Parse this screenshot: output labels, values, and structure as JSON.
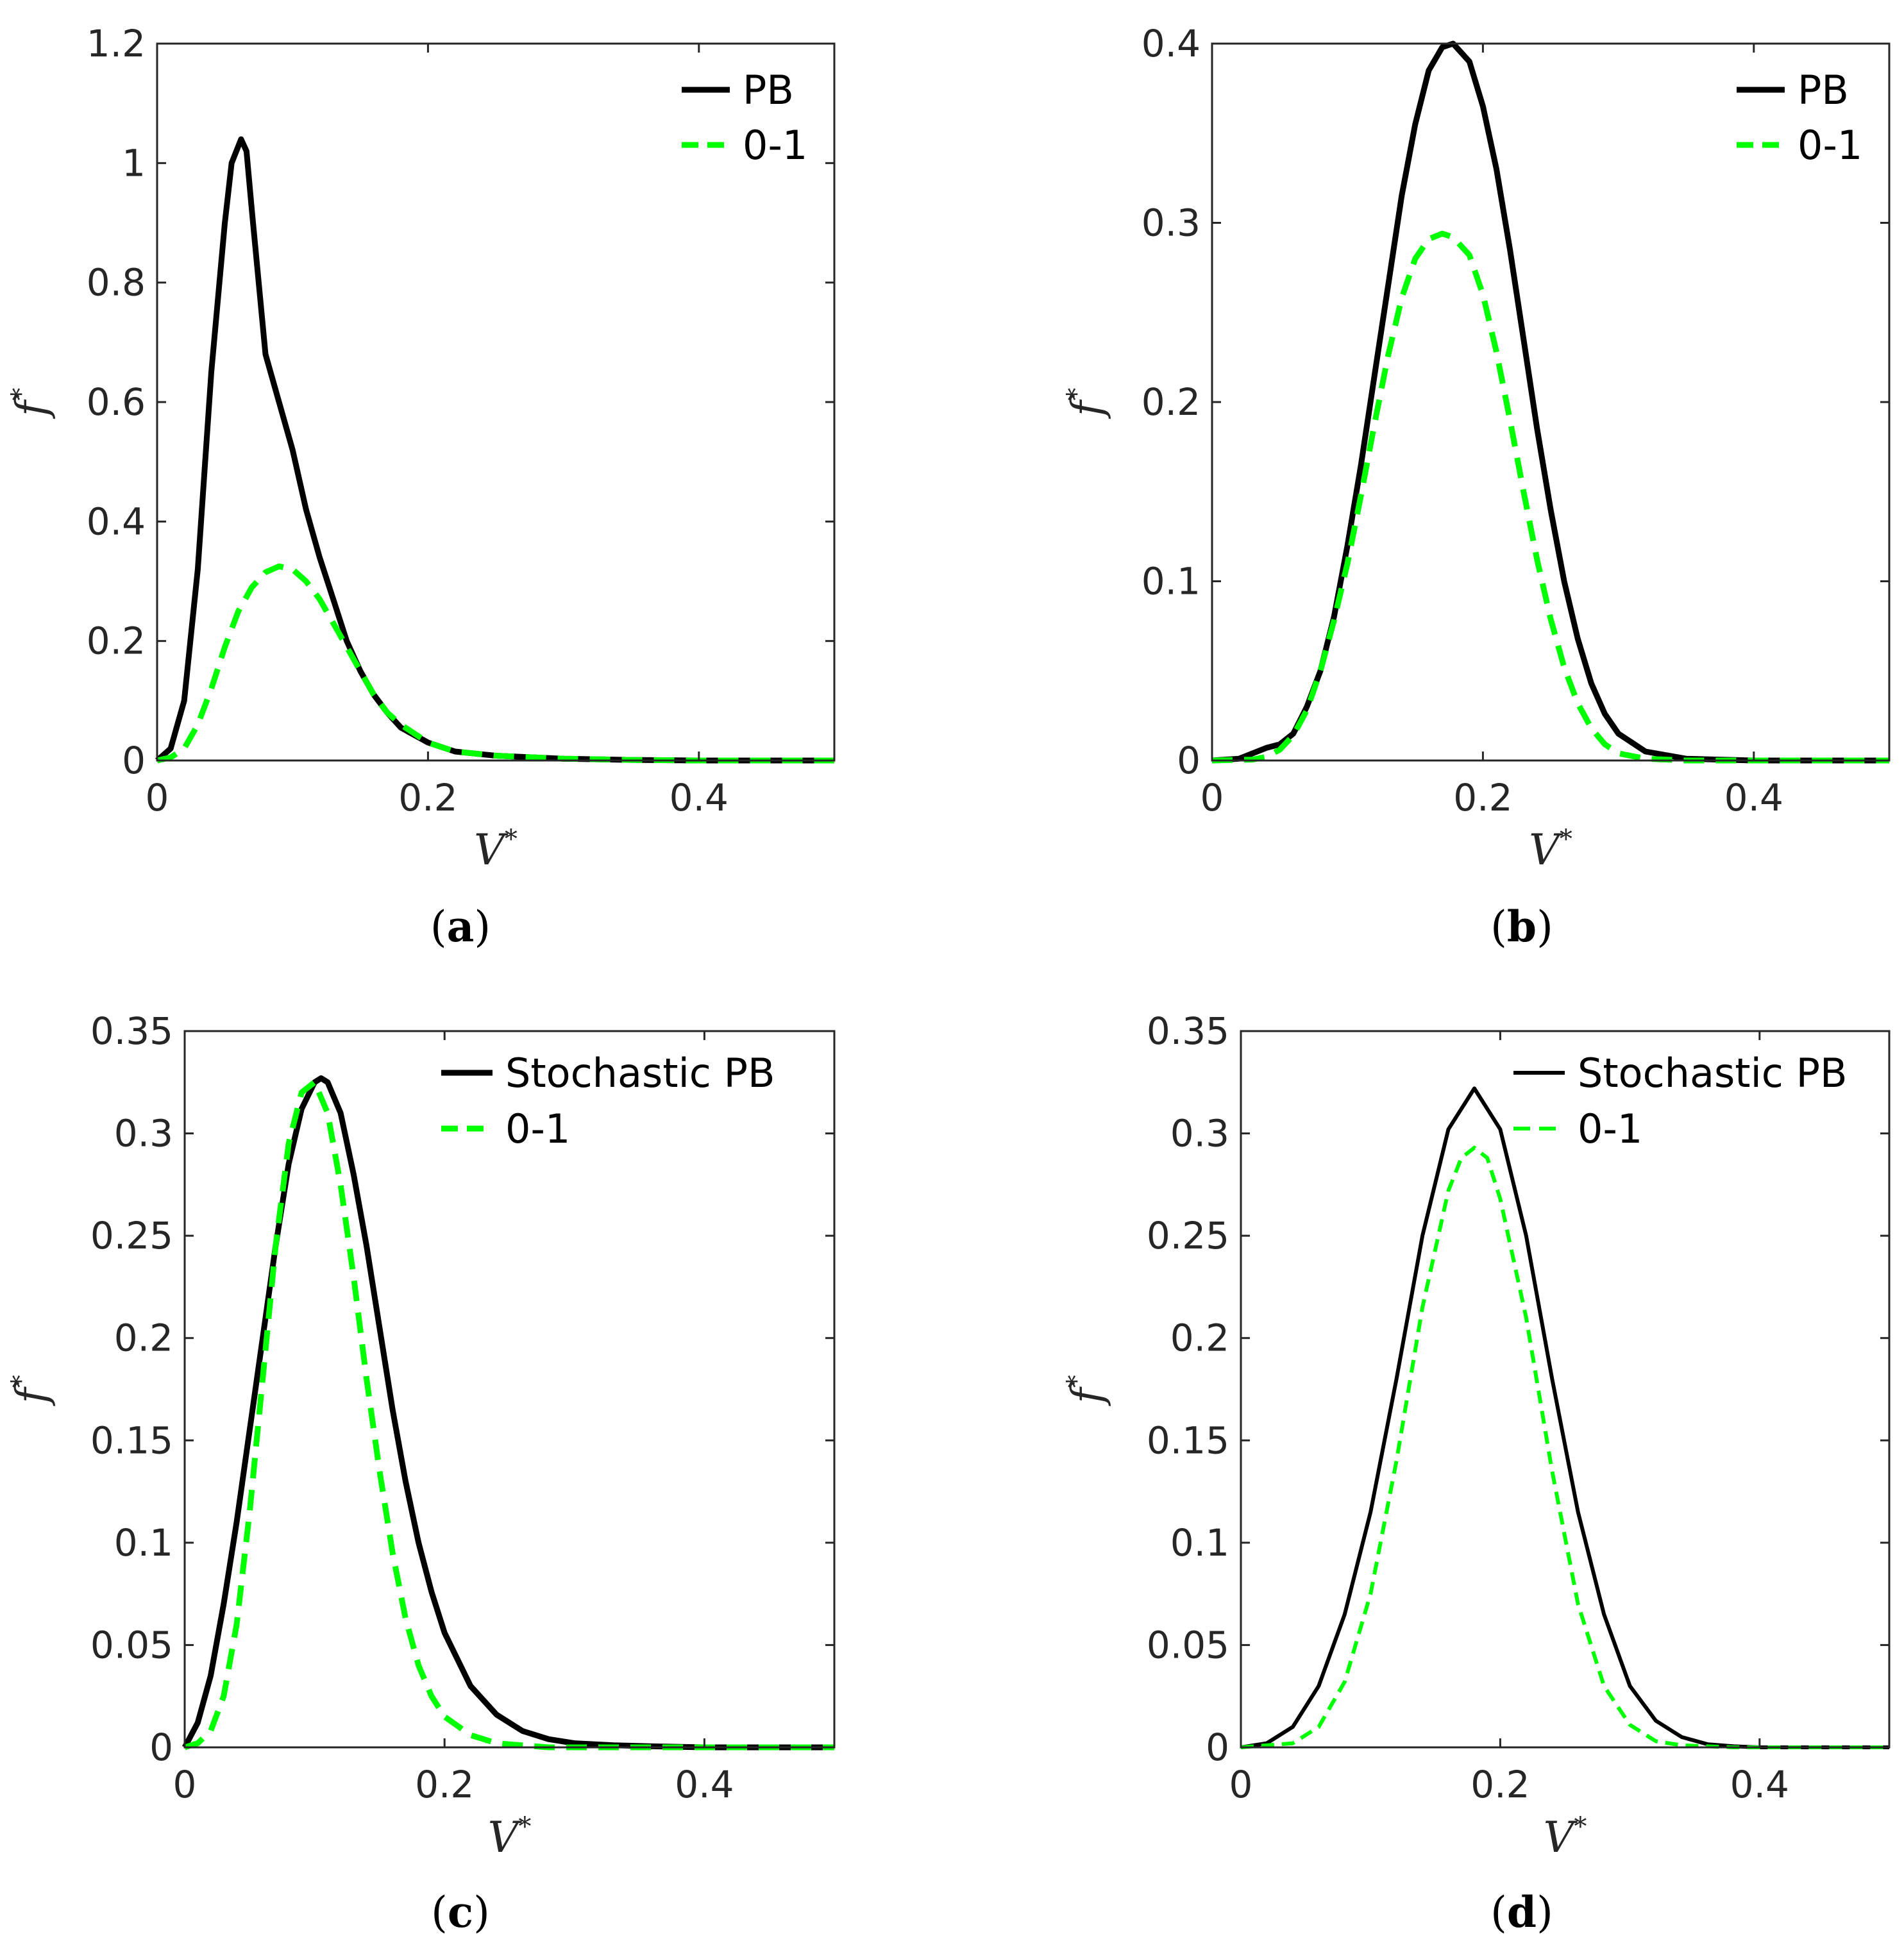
{
  "colors": {
    "pb": "#000000",
    "zero_one": "#00ff00",
    "axes": "#262626",
    "background": "#ffffff"
  },
  "chart_data": [
    {
      "panel": "a",
      "type": "line",
      "caption_open": "(",
      "caption_letter": "a",
      "caption_close": ")",
      "xlabel": "V",
      "xlabel_sup": "*",
      "ylabel": "f",
      "ylabel_sup": "*",
      "xlim": [
        0,
        0.5
      ],
      "ylim": [
        0,
        1.2
      ],
      "xticks": [
        0,
        0.2,
        0.4
      ],
      "xtick_labels": [
        "0",
        "0.2",
        "0.4"
      ],
      "yticks": [
        0,
        0.2,
        0.4,
        0.6,
        0.8,
        1,
        1.2
      ],
      "ytick_labels": [
        "0",
        "0.2",
        "0.4",
        "0.6",
        "0.8",
        "1",
        "1.2"
      ],
      "grid": false,
      "legend_position": "top-right",
      "series": [
        {
          "name": "PB",
          "style": "solid",
          "x": [
            0,
            0.01,
            0.02,
            0.03,
            0.04,
            0.05,
            0.055,
            0.062,
            0.066,
            0.07,
            0.08,
            0.09,
            0.1,
            0.11,
            0.12,
            0.13,
            0.14,
            0.15,
            0.16,
            0.17,
            0.18,
            0.2,
            0.22,
            0.25,
            0.3,
            0.35,
            0.4,
            0.45,
            0.5
          ],
          "y": [
            0,
            0.02,
            0.1,
            0.32,
            0.65,
            0.9,
            1.0,
            1.04,
            1.02,
            0.92,
            0.68,
            0.6,
            0.52,
            0.42,
            0.34,
            0.27,
            0.2,
            0.15,
            0.11,
            0.08,
            0.055,
            0.03,
            0.015,
            0.008,
            0.003,
            0.001,
            0,
            0,
            0
          ]
        },
        {
          "name": "0-1",
          "style": "dashed",
          "x": [
            0,
            0.01,
            0.02,
            0.03,
            0.04,
            0.05,
            0.06,
            0.07,
            0.08,
            0.09,
            0.1,
            0.11,
            0.12,
            0.13,
            0.14,
            0.15,
            0.16,
            0.17,
            0.18,
            0.2,
            0.22,
            0.25,
            0.3,
            0.35,
            0.4,
            0.45,
            0.5
          ],
          "y": [
            0,
            0.005,
            0.02,
            0.06,
            0.12,
            0.19,
            0.25,
            0.29,
            0.315,
            0.325,
            0.32,
            0.3,
            0.27,
            0.23,
            0.19,
            0.15,
            0.11,
            0.08,
            0.06,
            0.03,
            0.015,
            0.008,
            0.003,
            0.001,
            0,
            0,
            0
          ]
        }
      ]
    },
    {
      "panel": "b",
      "type": "line",
      "caption_open": "(",
      "caption_letter": "b",
      "caption_close": ")",
      "xlabel": "V",
      "xlabel_sup": "*",
      "ylabel": "f",
      "ylabel_sup": "*",
      "xlim": [
        0,
        0.5
      ],
      "ylim": [
        0,
        0.4
      ],
      "xticks": [
        0,
        0.2,
        0.4
      ],
      "xtick_labels": [
        "0",
        "0.2",
        "0.4"
      ],
      "yticks": [
        0,
        0.1,
        0.2,
        0.3,
        0.4
      ],
      "ytick_labels": [
        "0",
        "0.1",
        "0.2",
        "0.3",
        "0.4"
      ],
      "grid": false,
      "legend_position": "top-right",
      "series": [
        {
          "name": "PB",
          "style": "solid",
          "x": [
            0,
            0.02,
            0.03,
            0.04,
            0.05,
            0.06,
            0.07,
            0.08,
            0.09,
            0.1,
            0.11,
            0.12,
            0.13,
            0.14,
            0.15,
            0.16,
            0.17,
            0.178,
            0.19,
            0.2,
            0.21,
            0.22,
            0.23,
            0.24,
            0.25,
            0.26,
            0.27,
            0.28,
            0.29,
            0.3,
            0.32,
            0.35,
            0.4,
            0.45,
            0.5
          ],
          "y": [
            0,
            0.001,
            0.004,
            0.007,
            0.009,
            0.015,
            0.03,
            0.05,
            0.08,
            0.12,
            0.165,
            0.215,
            0.265,
            0.315,
            0.355,
            0.385,
            0.398,
            0.4,
            0.39,
            0.365,
            0.33,
            0.285,
            0.235,
            0.185,
            0.14,
            0.1,
            0.068,
            0.043,
            0.026,
            0.015,
            0.005,
            0.001,
            0,
            0,
            0
          ]
        },
        {
          "name": "0-1",
          "style": "dashed",
          "x": [
            0,
            0.03,
            0.04,
            0.05,
            0.06,
            0.07,
            0.08,
            0.09,
            0.1,
            0.11,
            0.12,
            0.13,
            0.14,
            0.15,
            0.16,
            0.17,
            0.178,
            0.19,
            0.2,
            0.21,
            0.22,
            0.23,
            0.24,
            0.25,
            0.26,
            0.27,
            0.28,
            0.29,
            0.3,
            0.32,
            0.35,
            0.4,
            0.45,
            0.5
          ],
          "y": [
            0,
            0.0005,
            0.002,
            0.006,
            0.014,
            0.028,
            0.05,
            0.078,
            0.11,
            0.148,
            0.188,
            0.226,
            0.258,
            0.28,
            0.291,
            0.294,
            0.292,
            0.282,
            0.26,
            0.228,
            0.19,
            0.15,
            0.112,
            0.079,
            0.052,
            0.032,
            0.018,
            0.009,
            0.004,
            0.001,
            0,
            0,
            0,
            0
          ]
        }
      ]
    },
    {
      "panel": "c",
      "type": "line",
      "caption_open": "(",
      "caption_letter": "c",
      "caption_close": ")",
      "xlabel": "V",
      "xlabel_sup": "*",
      "ylabel": "f",
      "ylabel_sup": "*",
      "xlim": [
        0,
        0.5
      ],
      "ylim": [
        0,
        0.35
      ],
      "xticks": [
        0,
        0.2,
        0.4
      ],
      "xtick_labels": [
        "0",
        "0.2",
        "0.4"
      ],
      "yticks": [
        0,
        0.05,
        0.1,
        0.15,
        0.2,
        0.25,
        0.3,
        0.35
      ],
      "ytick_labels": [
        "0",
        "0.05",
        "0.1",
        "0.15",
        "0.2",
        "0.25",
        "0.3",
        "0.35"
      ],
      "grid": false,
      "legend_position": "top-right",
      "series": [
        {
          "name": "Stochastic PB",
          "style": "solid",
          "x": [
            0,
            0.01,
            0.02,
            0.03,
            0.04,
            0.05,
            0.06,
            0.07,
            0.08,
            0.09,
            0.1,
            0.105,
            0.11,
            0.12,
            0.13,
            0.14,
            0.15,
            0.16,
            0.17,
            0.18,
            0.19,
            0.2,
            0.22,
            0.24,
            0.26,
            0.28,
            0.3,
            0.33,
            0.36,
            0.4,
            0.45,
            0.5
          ],
          "y": [
            0,
            0.012,
            0.035,
            0.07,
            0.11,
            0.155,
            0.2,
            0.245,
            0.285,
            0.312,
            0.325,
            0.327,
            0.325,
            0.31,
            0.28,
            0.245,
            0.205,
            0.165,
            0.13,
            0.1,
            0.076,
            0.056,
            0.03,
            0.016,
            0.008,
            0.004,
            0.002,
            0.001,
            0.0005,
            0,
            0,
            0
          ]
        },
        {
          "name": "0-1",
          "style": "dashed",
          "x": [
            0,
            0.01,
            0.02,
            0.03,
            0.04,
            0.05,
            0.06,
            0.07,
            0.08,
            0.09,
            0.1,
            0.11,
            0.12,
            0.13,
            0.14,
            0.15,
            0.16,
            0.17,
            0.18,
            0.19,
            0.2,
            0.22,
            0.24,
            0.26,
            0.28,
            0.3,
            0.35,
            0.4,
            0.45,
            0.5
          ],
          "y": [
            0,
            0.002,
            0.008,
            0.025,
            0.06,
            0.115,
            0.18,
            0.245,
            0.295,
            0.32,
            0.325,
            0.31,
            0.275,
            0.23,
            0.18,
            0.135,
            0.095,
            0.063,
            0.04,
            0.025,
            0.015,
            0.006,
            0.002,
            0.001,
            0,
            0,
            0,
            0,
            0,
            0
          ]
        }
      ]
    },
    {
      "panel": "d",
      "type": "line",
      "caption_open": "(",
      "caption_letter": "d",
      "caption_close": ")",
      "xlabel": "V",
      "xlabel_sup": "*",
      "ylabel": "f",
      "ylabel_sup": "*",
      "xlim": [
        0,
        0.5
      ],
      "ylim": [
        0,
        0.35
      ],
      "xticks": [
        0,
        0.2,
        0.4
      ],
      "xtick_labels": [
        "0",
        "0.2",
        "0.4"
      ],
      "yticks": [
        0,
        0.05,
        0.1,
        0.15,
        0.2,
        0.25,
        0.3,
        0.35
      ],
      "ytick_labels": [
        "0",
        "0.05",
        "0.1",
        "0.15",
        "0.2",
        "0.25",
        "0.3",
        "0.35"
      ],
      "grid": false,
      "legend_position": "top-right",
      "series": [
        {
          "name": "Stochastic PB",
          "style": "solid-thin",
          "x": [
            0,
            0.02,
            0.04,
            0.06,
            0.08,
            0.1,
            0.12,
            0.14,
            0.16,
            0.18,
            0.2,
            0.22,
            0.24,
            0.26,
            0.28,
            0.3,
            0.32,
            0.34,
            0.36,
            0.38,
            0.4,
            0.42,
            0.45,
            0.5
          ],
          "y": [
            0,
            0.002,
            0.01,
            0.03,
            0.065,
            0.115,
            0.18,
            0.25,
            0.302,
            0.322,
            0.302,
            0.25,
            0.18,
            0.115,
            0.065,
            0.03,
            0.013,
            0.005,
            0.0015,
            0.0005,
            0,
            0,
            0,
            0
          ]
        },
        {
          "name": "0-1",
          "style": "dashed-thin",
          "x": [
            0,
            0.04,
            0.06,
            0.08,
            0.1,
            0.12,
            0.14,
            0.16,
            0.17,
            0.18,
            0.19,
            0.2,
            0.22,
            0.24,
            0.26,
            0.28,
            0.3,
            0.32,
            0.34,
            0.38,
            0.42,
            0.5
          ],
          "y": [
            0,
            0.002,
            0.01,
            0.032,
            0.075,
            0.14,
            0.215,
            0.272,
            0.288,
            0.293,
            0.288,
            0.268,
            0.21,
            0.135,
            0.07,
            0.03,
            0.011,
            0.003,
            0.001,
            0,
            0,
            0
          ]
        }
      ]
    }
  ]
}
